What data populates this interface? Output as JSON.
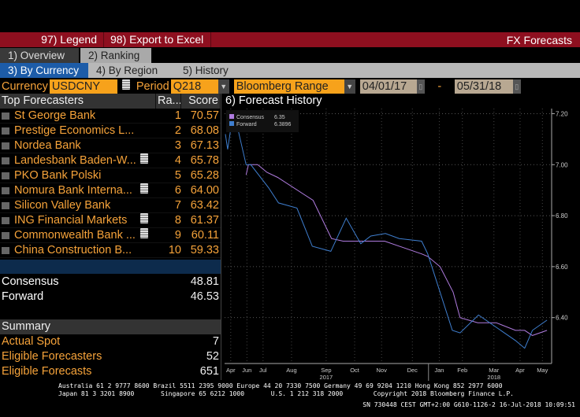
{
  "toolbar": {
    "legend": "97) Legend",
    "export": "98) Export to Excel",
    "title": "FX Forecasts"
  },
  "tabs": {
    "overview": "1) Overview",
    "ranking": "2) Ranking"
  },
  "subtabs": {
    "by_currency": "3) By Currency",
    "by_region": "4) By Region",
    "history": "5) History"
  },
  "controls": {
    "currency_label": "Currency",
    "currency": "USDCNY",
    "period_label": "Period",
    "period": "Q218",
    "range": "Bloomberg Range",
    "start": "04/01/17",
    "dash": "-",
    "end": "05/31/18"
  },
  "table": {
    "headers": [
      "Top Forecasters",
      "Ra...",
      "Score"
    ],
    "rows": [
      {
        "name": "St George Bank",
        "note": false,
        "rank": "1",
        "score": "70.57"
      },
      {
        "name": "Prestige Economics L...",
        "note": false,
        "rank": "2",
        "score": "68.08"
      },
      {
        "name": "Nordea Bank",
        "note": false,
        "rank": "3",
        "score": "67.13"
      },
      {
        "name": "Landesbank Baden-W...",
        "note": true,
        "rank": "4",
        "score": "65.78"
      },
      {
        "name": "PKO Bank Polski",
        "note": false,
        "rank": "5",
        "score": "65.28"
      },
      {
        "name": "Nomura Bank Interna...",
        "note": true,
        "rank": "6",
        "score": "64.00"
      },
      {
        "name": "Silicon Valley Bank",
        "note": false,
        "rank": "7",
        "score": "63.42"
      },
      {
        "name": "ING Financial Markets",
        "note": true,
        "rank": "8",
        "score": "61.37"
      },
      {
        "name": "Commonwealth Bank ...",
        "note": true,
        "rank": "9",
        "score": "60.11"
      },
      {
        "name": "China Construction B...",
        "note": false,
        "rank": "10",
        "score": "59.33"
      }
    ]
  },
  "benchmarks": [
    {
      "label": "Consensus",
      "value": "48.81"
    },
    {
      "label": "Forward",
      "value": "46.53"
    }
  ],
  "summary": {
    "title": "Summary",
    "rows": [
      {
        "label": "Actual Spot",
        "value": "7"
      },
      {
        "label": "Eligible Forecasters",
        "value": "52"
      },
      {
        "label": "Eligible Forecasts",
        "value": "651"
      }
    ]
  },
  "chart_title": "6) Forecast History",
  "chart_data": {
    "type": "line",
    "title": "Forecast History",
    "ylim": [
      6.22,
      7.22
    ],
    "xlim": [
      "2017-04-01",
      "2018-05-31"
    ],
    "yticks": [
      6.4,
      6.6,
      6.8,
      7.0,
      7.2
    ],
    "ytick_labels": [
      "6.40",
      "6.60",
      "6.80",
      "7.00",
      "7.20"
    ],
    "xticks": [
      {
        "date": "2017-04-09",
        "label": "Apr"
      },
      {
        "date": "2017-04-30",
        "label": "Jun"
      },
      {
        "date": "2017-05-21",
        "label": "Jul"
      },
      {
        "date": "2017-06-27",
        "label": "Aug"
      },
      {
        "date": "2017-08-11",
        "label": "Sep"
      },
      {
        "date": "2017-09-17",
        "label": "Oct"
      },
      {
        "date": "2017-10-22",
        "label": "Nov"
      },
      {
        "date": "2017-12-01",
        "label": "Dec"
      },
      {
        "date": "2018-01-05",
        "label": "Jan"
      },
      {
        "date": "2018-02-04",
        "label": "Feb"
      },
      {
        "date": "2018-03-17",
        "label": "Mar"
      },
      {
        "date": "2018-04-20",
        "label": "Apr"
      },
      {
        "date": "2018-05-19",
        "label": "May"
      }
    ],
    "years": [
      {
        "date": "2017-08-11",
        "label": "2017"
      },
      {
        "date": "2018-03-17",
        "label": "2018"
      }
    ],
    "legend_position": "top-left",
    "grid": true,
    "series": [
      {
        "name": "Consensus",
        "legend_value": "6.35",
        "color": "#b07ce0",
        "points": [
          [
            "2017-04-29",
            6.96
          ],
          [
            "2017-05-02",
            7.0
          ],
          [
            "2017-05-14",
            7.0
          ],
          [
            "2017-05-26",
            6.97
          ],
          [
            "2017-06-09",
            6.95
          ],
          [
            "2017-07-25",
            6.86
          ],
          [
            "2017-08-18",
            6.71
          ],
          [
            "2017-09-02",
            6.7
          ],
          [
            "2017-10-26",
            6.7
          ],
          [
            "2017-12-13",
            6.65
          ],
          [
            "2017-12-21",
            6.64
          ],
          [
            "2018-01-06",
            6.6
          ],
          [
            "2018-01-23",
            6.5
          ],
          [
            "2018-02-01",
            6.4
          ],
          [
            "2018-02-24",
            6.38
          ],
          [
            "2018-03-20",
            6.38
          ],
          [
            "2018-04-14",
            6.35
          ],
          [
            "2018-04-26",
            6.35
          ],
          [
            "2018-05-06",
            6.33
          ],
          [
            "2018-05-25",
            6.35
          ]
        ]
      },
      {
        "name": "Forward",
        "legend_value": "6.3896",
        "color": "#3f7fd0",
        "points": [
          [
            "2017-04-02",
            7.12
          ],
          [
            "2017-04-05",
            7.06
          ],
          [
            "2017-04-09",
            7.14
          ],
          [
            "2017-04-19",
            7.13
          ],
          [
            "2017-04-29",
            7.0
          ],
          [
            "2017-05-05",
            7.0
          ],
          [
            "2017-05-28",
            6.91
          ],
          [
            "2017-06-10",
            6.85
          ],
          [
            "2017-07-04",
            6.83
          ],
          [
            "2017-07-24",
            6.68
          ],
          [
            "2017-08-17",
            6.66
          ],
          [
            "2017-09-06",
            6.79
          ],
          [
            "2017-09-25",
            6.69
          ],
          [
            "2017-10-08",
            6.72
          ],
          [
            "2017-10-27",
            6.73
          ],
          [
            "2017-11-14",
            6.71
          ],
          [
            "2017-12-13",
            6.7
          ],
          [
            "2017-12-21",
            6.65
          ],
          [
            "2018-01-22",
            6.35
          ],
          [
            "2018-02-01",
            6.34
          ],
          [
            "2018-02-25",
            6.41
          ],
          [
            "2018-04-14",
            6.31
          ],
          [
            "2018-04-26",
            6.28
          ],
          [
            "2018-05-06",
            6.35
          ],
          [
            "2018-05-25",
            6.39
          ]
        ]
      }
    ]
  },
  "footer": {
    "line1": "Australia 61 2 9777 8600 Brazil 5511 2395 9000 Europe 44 20 7330 7500 Germany 49 69 9204 1210 Hong Kong 852 2977 6000",
    "line2": "Japan 81 3 3201 8900       Singapore 65 6212 1000       U.S. 1 212 318 2000        Copyright 2018 Bloomberg Finance L.P.",
    "line3": "SN 730448 CEST GMT+2:00 G610-1126-2 16-Jul-2018 10:09:51"
  }
}
